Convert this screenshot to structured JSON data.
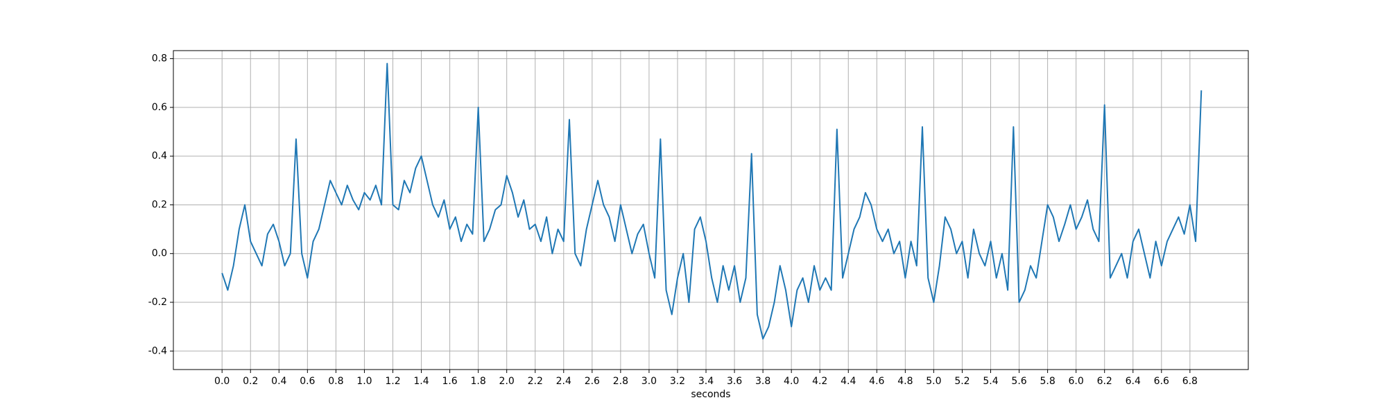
{
  "chart_data": {
    "type": "line",
    "xlabel": "seconds",
    "x": [
      0,
      0.04,
      0.08,
      0.12,
      0.16,
      0.2,
      0.24,
      0.28,
      0.32,
      0.36,
      0.4,
      0.44,
      0.48,
      0.52,
      0.56,
      0.6,
      0.64,
      0.68,
      0.72,
      0.76,
      0.8,
      0.84,
      0.88,
      0.92,
      0.96,
      1,
      1.04,
      1.08,
      1.12,
      1.16,
      1.2,
      1.24,
      1.28,
      1.32,
      1.36,
      1.4,
      1.44,
      1.48,
      1.52,
      1.56,
      1.6,
      1.64,
      1.68,
      1.72,
      1.76,
      1.8,
      1.84,
      1.88,
      1.92,
      1.96,
      2,
      2.04,
      2.08,
      2.12,
      2.16,
      2.2,
      2.24,
      2.28,
      2.32,
      2.36,
      2.4,
      2.44,
      2.48,
      2.52,
      2.56,
      2.6,
      2.64,
      2.68,
      2.72,
      2.76,
      2.8,
      2.84,
      2.88,
      2.92,
      2.96,
      3,
      3.04,
      3.08,
      3.12,
      3.16,
      3.2,
      3.24,
      3.28,
      3.32,
      3.36,
      3.4,
      3.44,
      3.48,
      3.52,
      3.56,
      3.6,
      3.64,
      3.68,
      3.72,
      3.76,
      3.8,
      3.84,
      3.88,
      3.92,
      3.96,
      4,
      4.04,
      4.08,
      4.12,
      4.16,
      4.2,
      4.24,
      4.28,
      4.32,
      4.36,
      4.4,
      4.44,
      4.48,
      4.52,
      4.56,
      4.6,
      4.64,
      4.68,
      4.72,
      4.76,
      4.8,
      4.84,
      4.88,
      4.92,
      4.96,
      5,
      5.04,
      5.08,
      5.12,
      5.16,
      5.2,
      5.24,
      5.28,
      5.32,
      5.36,
      5.4,
      5.44,
      5.48,
      5.52,
      5.56,
      5.6,
      5.64,
      5.68,
      5.72,
      5.76,
      5.8,
      5.84,
      5.88,
      5.92,
      5.96,
      6,
      6.04,
      6.08,
      6.12,
      6.16,
      6.2,
      6.24,
      6.28,
      6.32,
      6.36,
      6.4,
      6.44,
      6.48,
      6.52,
      6.56,
      6.6,
      6.64,
      6.68,
      6.72,
      6.76,
      6.8,
      6.84,
      6.88
    ],
    "series": [
      {
        "color": "#1f77b4",
        "values": [
          -0.08,
          -0.15,
          -0.05,
          0.1,
          0.2,
          0.05,
          0,
          -0.05,
          0.08,
          0.12,
          0.05,
          -0.05,
          0,
          0.47,
          0,
          -0.1,
          0.05,
          0.1,
          0.2,
          0.3,
          0.25,
          0.2,
          0.28,
          0.22,
          0.18,
          0.25,
          0.22,
          0.28,
          0.2,
          0.78,
          0.2,
          0.18,
          0.3,
          0.25,
          0.35,
          0.4,
          0.3,
          0.2,
          0.15,
          0.22,
          0.1,
          0.15,
          0.05,
          0.12,
          0.08,
          0.6,
          0.05,
          0.1,
          0.18,
          0.2,
          0.32,
          0.25,
          0.15,
          0.22,
          0.1,
          0.12,
          0.05,
          0.15,
          0,
          0.1,
          0.05,
          0.55,
          0,
          -0.05,
          0.1,
          0.2,
          0.3,
          0.2,
          0.15,
          0.05,
          0.2,
          0.1,
          0,
          0.08,
          0.12,
          0,
          -0.1,
          0.47,
          -0.15,
          -0.25,
          -0.1,
          0,
          -0.2,
          0.1,
          0.15,
          0.05,
          -0.1,
          -0.2,
          -0.05,
          -0.15,
          -0.05,
          -0.2,
          -0.1,
          0.41,
          -0.25,
          -0.35,
          -0.3,
          -0.2,
          -0.05,
          -0.15,
          -0.3,
          -0.15,
          -0.1,
          -0.2,
          -0.05,
          -0.15,
          -0.1,
          -0.15,
          0.51,
          -0.1,
          0,
          0.1,
          0.15,
          0.25,
          0.2,
          0.1,
          0.05,
          0.1,
          0,
          0.05,
          -0.1,
          0.05,
          -0.05,
          0.52,
          -0.1,
          -0.2,
          -0.05,
          0.15,
          0.1,
          0,
          0.05,
          -0.1,
          0.1,
          0,
          -0.05,
          0.05,
          -0.1,
          0,
          -0.15,
          0.52,
          -0.2,
          -0.15,
          -0.05,
          -0.1,
          0.05,
          0.2,
          0.15,
          0.05,
          0.12,
          0.2,
          0.1,
          0.15,
          0.22,
          0.1,
          0.05,
          0.61,
          -0.1,
          -0.05,
          0,
          -0.1,
          0.05,
          0.1,
          0,
          -0.1,
          0.05,
          -0.05,
          0.05,
          0.1,
          0.15,
          0.08,
          0.2,
          0.05,
          0.67
        ]
      }
    ],
    "xlim": [
      -0.342,
      7.21
    ],
    "ylim": [
      -0.476,
      0.833
    ],
    "xticks": [
      {
        "value": 0,
        "label": "0.0"
      },
      0.2,
      0.4,
      0.6,
      0.8,
      {
        "value": 1,
        "label": "1.0"
      },
      1.2,
      1.4,
      1.6,
      1.8,
      {
        "value": 2,
        "label": "2.0"
      },
      2.2,
      2.4,
      2.6,
      2.8,
      {
        "value": 3,
        "label": "3.0"
      },
      3.2,
      3.4,
      3.6,
      3.8,
      {
        "value": 4,
        "label": "4.0"
      },
      4.2,
      4.4,
      4.6,
      4.8,
      {
        "value": 5,
        "label": "5.0"
      },
      5.2,
      5.4,
      5.6,
      5.8,
      {
        "value": 6,
        "label": "6.0"
      },
      6.2,
      6.4,
      6.6,
      6.8
    ],
    "yticks": [
      -0.4,
      -0.2,
      {
        "value": 0,
        "label": "0.0"
      },
      0.2,
      0.4,
      0.6,
      0.8
    ],
    "grid": true
  }
}
